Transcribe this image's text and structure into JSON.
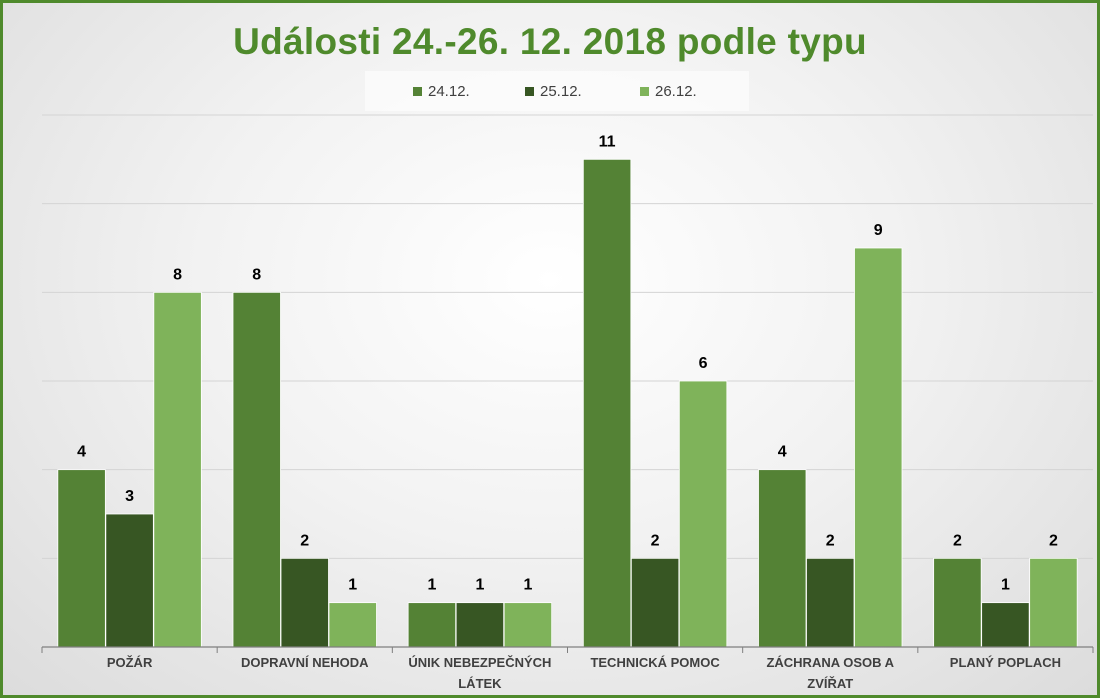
{
  "chart_data": {
    "type": "bar",
    "title": "Události 24.-26. 12. 2018 podle typu",
    "categories": [
      [
        "POŽÁR"
      ],
      [
        "DOPRAVNÍ NEHODA"
      ],
      [
        "ÚNIK NEBEZPEČNÝCH",
        "LÁTEK"
      ],
      [
        "TECHNICKÁ POMOC"
      ],
      [
        "ZÁCHRANA OSOB A",
        "ZVÍŘAT"
      ],
      [
        "PLANÝ POPLACH"
      ]
    ],
    "series": [
      {
        "name": "24.12.",
        "color": "#548235",
        "values": [
          4,
          8,
          1,
          11,
          4,
          2
        ]
      },
      {
        "name": "25.12.",
        "color": "#375623",
        "values": [
          3,
          2,
          1,
          2,
          2,
          1
        ]
      },
      {
        "name": "26.12.",
        "color": "#7fb35a",
        "values": [
          8,
          1,
          1,
          6,
          9,
          2
        ]
      }
    ],
    "ylim": [
      0,
      12
    ],
    "grid": true,
    "legend_position": "top",
    "data_labels": true
  }
}
